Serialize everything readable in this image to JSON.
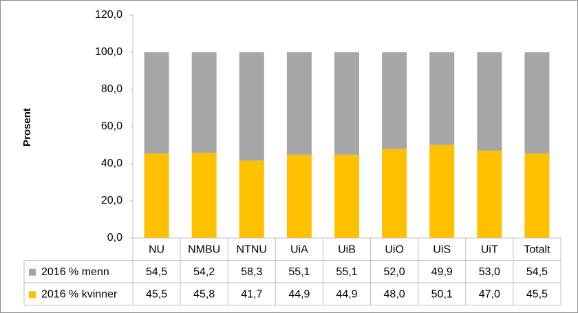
{
  "chart_data": {
    "type": "stacked_bar",
    "y_label": "Prosent",
    "categories": [
      "NU",
      "NMBU",
      "NTNU",
      "UiA",
      "UiB",
      "UiO",
      "UiS",
      "UiT",
      "Totalt"
    ],
    "series": [
      {
        "name": "2016 % menn",
        "color": "#a6a6a6",
        "values": [
          54.5,
          54.2,
          58.3,
          55.1,
          55.1,
          52.0,
          49.9,
          53.0,
          54.5
        ],
        "value_labels": [
          "54,5",
          "54,2",
          "58,3",
          "55,1",
          "55,1",
          "52,0",
          "49,9",
          "53,0",
          "54,5"
        ]
      },
      {
        "name": "2016 % kvinner",
        "color": "#ffc000",
        "values": [
          45.5,
          45.8,
          41.7,
          44.9,
          44.9,
          48.0,
          50.1,
          47.0,
          45.5
        ],
        "value_labels": [
          "45,5",
          "45,8",
          "41,7",
          "44,9",
          "44,9",
          "48,0",
          "50,1",
          "47,0",
          "45,5"
        ]
      }
    ],
    "ylim": [
      0,
      120
    ],
    "yticks": [
      {
        "value": 0,
        "label": "0,0"
      },
      {
        "value": 20,
        "label": "20,0"
      },
      {
        "value": 40,
        "label": "40,0"
      },
      {
        "value": 60,
        "label": "60,0"
      },
      {
        "value": 80,
        "label": "80,0"
      },
      {
        "value": 100,
        "label": "100,0"
      },
      {
        "value": 120,
        "label": "120,0"
      }
    ],
    "grid": false
  }
}
